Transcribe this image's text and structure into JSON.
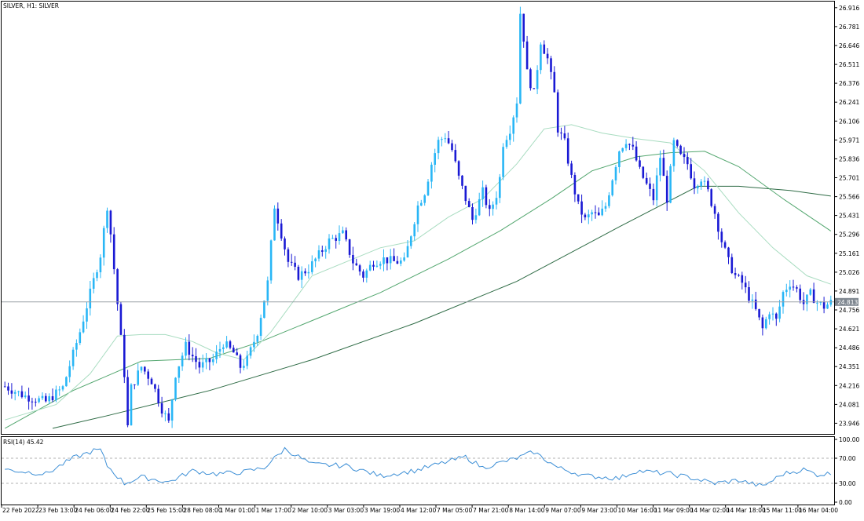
{
  "window": {
    "title": "SILVER, H1:  SILVER"
  },
  "colors": {
    "bull": "#29b6f6",
    "bear": "#1a1ad4",
    "ma_fast": "#a8dcc0",
    "ma_mid": "#52a66e",
    "ma_slow": "#2e6b45",
    "rsi": "#3d8fd6",
    "current_line": "#9aa0a6",
    "price_tag_bg": "#7f8790"
  },
  "price_axis": {
    "labels": [
      "26.916",
      "26.781",
      "26.646",
      "26.511",
      "26.376",
      "26.241",
      "26.106",
      "25.971",
      "25.836",
      "25.701",
      "25.566",
      "25.431",
      "25.296",
      "25.161",
      "25.026",
      "24.891",
      "24.756",
      "24.621",
      "24.486",
      "24.351",
      "24.216",
      "24.081",
      "23.946"
    ],
    "current_price": 24.813,
    "current_price_label": "24.813"
  },
  "rsi_panel": {
    "label": "RSI(14) 45.42",
    "levels": [
      "100.00",
      "70.00",
      "30.00",
      "0.00"
    ],
    "value": 45.42
  },
  "time_axis": {
    "labels": [
      "22 Feb 2022",
      "23 Feb 13:00",
      "24 Feb 06:00",
      "24 Feb 22:00",
      "25 Feb 15:00",
      "28 Feb 08:00",
      "1 Mar 01:00",
      "1 Mar 17:00",
      "2 Mar 10:00",
      "3 Mar 03:00",
      "3 Mar 19:00",
      "4 Mar 12:00",
      "7 Mar 05:00",
      "7 Mar 21:00",
      "8 Mar 14:00",
      "9 Mar 07:00",
      "9 Mar 23:00",
      "10 Mar 16:00",
      "11 Mar 09:00",
      "14 Mar 02:00",
      "14 Mar 18:00",
      "15 Mar 11:00",
      "16 Mar 04:00"
    ]
  },
  "chart_data": {
    "type": "line",
    "symbol": "SILVER",
    "timeframe": "H1",
    "title": "SILVER, H1:  SILVER",
    "x_ticks": [
      "22 Feb 2022",
      "23 Feb 13:00",
      "24 Feb 06:00",
      "24 Feb 22:00",
      "25 Feb 15:00",
      "28 Feb 08:00",
      "1 Mar 01:00",
      "1 Mar 17:00",
      "2 Mar 10:00",
      "3 Mar 03:00",
      "3 Mar 19:00",
      "4 Mar 12:00",
      "7 Mar 05:00",
      "7 Mar 21:00",
      "8 Mar 14:00",
      "9 Mar 07:00",
      "9 Mar 23:00",
      "10 Mar 16:00",
      "11 Mar 09:00",
      "14 Mar 02:00",
      "14 Mar 18:00",
      "15 Mar 11:00",
      "16 Mar 04:00"
    ],
    "close_path": [
      [
        0,
        24.21
      ],
      [
        6,
        24.14
      ],
      [
        12,
        24.1
      ],
      [
        17,
        24.2
      ],
      [
        22,
        24.6
      ],
      [
        28,
        25.15
      ],
      [
        30,
        25.5
      ],
      [
        31,
        25.3
      ],
      [
        33,
        24.8
      ],
      [
        35,
        24.3
      ],
      [
        36,
        23.92
      ],
      [
        37,
        24.2
      ],
      [
        40,
        24.35
      ],
      [
        43,
        24.25
      ],
      [
        46,
        24.05
      ],
      [
        48,
        23.95
      ],
      [
        50,
        24.3
      ],
      [
        53,
        24.5
      ],
      [
        57,
        24.35
      ],
      [
        61,
        24.4
      ],
      [
        64,
        24.52
      ],
      [
        67,
        24.45
      ],
      [
        69,
        24.35
      ],
      [
        71,
        24.4
      ],
      [
        74,
        24.6
      ],
      [
        77,
        24.95
      ],
      [
        79,
        25.5
      ],
      [
        80,
        25.4
      ],
      [
        83,
        25.1
      ],
      [
        86,
        25.0
      ],
      [
        89,
        25.05
      ],
      [
        92,
        25.15
      ],
      [
        95,
        25.25
      ],
      [
        99,
        25.3
      ],
      [
        102,
        25.1
      ],
      [
        105,
        25.0
      ],
      [
        108,
        25.1
      ],
      [
        111,
        25.12
      ],
      [
        114,
        25.1
      ],
      [
        117,
        25.1
      ],
      [
        119,
        25.3
      ],
      [
        121,
        25.5
      ],
      [
        123,
        25.6
      ],
      [
        125,
        25.8
      ],
      [
        127,
        25.96
      ],
      [
        129,
        26.0
      ],
      [
        131,
        25.9
      ],
      [
        133,
        25.7
      ],
      [
        135,
        25.55
      ],
      [
        137,
        25.4
      ],
      [
        140,
        25.6
      ],
      [
        142,
        25.45
      ],
      [
        144,
        25.58
      ],
      [
        145,
        25.7
      ],
      [
        146,
        25.95
      ],
      [
        148,
        26.05
      ],
      [
        150,
        26.25
      ],
      [
        151,
        26.88
      ],
      [
        152,
        26.7
      ],
      [
        153,
        26.45
      ],
      [
        155,
        26.3
      ],
      [
        157,
        26.68
      ],
      [
        159,
        26.55
      ],
      [
        161,
        26.3
      ],
      [
        162,
        26.05
      ],
      [
        164,
        25.95
      ],
      [
        166,
        25.7
      ],
      [
        168,
        25.5
      ],
      [
        170,
        25.4
      ],
      [
        172,
        25.45
      ],
      [
        174,
        25.42
      ],
      [
        176,
        25.5
      ],
      [
        178,
        25.7
      ],
      [
        180,
        25.9
      ],
      [
        182,
        25.97
      ],
      [
        184,
        25.9
      ],
      [
        186,
        25.75
      ],
      [
        188,
        25.65
      ],
      [
        190,
        25.55
      ],
      [
        192,
        25.85
      ],
      [
        194,
        25.55
      ],
      [
        196,
        25.95
      ],
      [
        198,
        25.85
      ],
      [
        200,
        25.8
      ],
      [
        202,
        25.65
      ],
      [
        204,
        25.7
      ],
      [
        206,
        25.6
      ],
      [
        208,
        25.45
      ],
      [
        210,
        25.25
      ],
      [
        212,
        25.1
      ],
      [
        214,
        25.0
      ],
      [
        216,
        24.95
      ],
      [
        218,
        24.85
      ],
      [
        220,
        24.75
      ],
      [
        222,
        24.62
      ],
      [
        224,
        24.75
      ],
      [
        226,
        24.68
      ],
      [
        228,
        24.88
      ],
      [
        230,
        24.95
      ],
      [
        232,
        24.9
      ],
      [
        234,
        24.8
      ],
      [
        236,
        24.87
      ],
      [
        238,
        24.81
      ],
      [
        240,
        24.78
      ],
      [
        242,
        24.81
      ]
    ],
    "series": [
      {
        "name": "RSI(14)",
        "last_value": 45.42
      }
    ],
    "ylim_price": [
      23.87,
      26.96
    ],
    "ylim_rsi": [
      0,
      100
    ],
    "rsi_levels": [
      70,
      30
    ],
    "current_price": 24.813,
    "grid": false,
    "ma_paths": {
      "fast": [
        [
          0,
          23.97
        ],
        [
          15,
          24.08
        ],
        [
          25,
          24.3
        ],
        [
          33,
          24.57
        ],
        [
          40,
          24.58
        ],
        [
          47,
          24.58
        ],
        [
          55,
          24.53
        ],
        [
          62,
          24.45
        ],
        [
          70,
          24.4
        ],
        [
          78,
          24.6
        ],
        [
          90,
          25.0
        ],
        [
          100,
          25.1
        ],
        [
          110,
          25.2
        ],
        [
          120,
          25.25
        ],
        [
          130,
          25.42
        ],
        [
          140,
          25.55
        ],
        [
          150,
          25.8
        ],
        [
          158,
          26.05
        ],
        [
          166,
          26.08
        ],
        [
          175,
          26.02
        ],
        [
          185,
          25.98
        ],
        [
          195,
          25.95
        ],
        [
          205,
          25.75
        ],
        [
          215,
          25.45
        ],
        [
          225,
          25.2
        ],
        [
          235,
          25.0
        ],
        [
          242,
          24.94
        ]
      ],
      "mid": [
        [
          0,
          23.91
        ],
        [
          20,
          24.18
        ],
        [
          40,
          24.39
        ],
        [
          60,
          24.41
        ],
        [
          75,
          24.53
        ],
        [
          90,
          24.68
        ],
        [
          110,
          24.88
        ],
        [
          130,
          25.12
        ],
        [
          145,
          25.32
        ],
        [
          160,
          25.55
        ],
        [
          172,
          25.75
        ],
        [
          185,
          25.85
        ],
        [
          195,
          25.88
        ],
        [
          205,
          25.89
        ],
        [
          215,
          25.78
        ],
        [
          228,
          25.55
        ],
        [
          242,
          25.32
        ]
      ],
      "slow": [
        [
          14,
          23.91
        ],
        [
          30,
          24.0
        ],
        [
          60,
          24.18
        ],
        [
          90,
          24.4
        ],
        [
          120,
          24.66
        ],
        [
          150,
          24.96
        ],
        [
          180,
          25.35
        ],
        [
          203,
          25.64
        ],
        [
          215,
          25.64
        ],
        [
          230,
          25.61
        ],
        [
          242,
          25.57
        ]
      ]
    },
    "rsi_path": [
      [
        0,
        52
      ],
      [
        12,
        45
      ],
      [
        20,
        70
      ],
      [
        26,
        82
      ],
      [
        28,
        83
      ],
      [
        30,
        58
      ],
      [
        35,
        30
      ],
      [
        40,
        40
      ],
      [
        48,
        32
      ],
      [
        55,
        50
      ],
      [
        62,
        45
      ],
      [
        70,
        48
      ],
      [
        76,
        55
      ],
      [
        82,
        85
      ],
      [
        90,
        60
      ],
      [
        100,
        58
      ],
      [
        110,
        42
      ],
      [
        120,
        50
      ],
      [
        130,
        65
      ],
      [
        135,
        72
      ],
      [
        140,
        55
      ],
      [
        150,
        70
      ],
      [
        155,
        80
      ],
      [
        162,
        55
      ],
      [
        170,
        42
      ],
      [
        180,
        38
      ],
      [
        185,
        50
      ],
      [
        195,
        45
      ],
      [
        200,
        40
      ],
      [
        208,
        30
      ],
      [
        215,
        35
      ],
      [
        222,
        25
      ],
      [
        228,
        45
      ],
      [
        234,
        52
      ],
      [
        238,
        44
      ],
      [
        242,
        45.42
      ]
    ]
  }
}
